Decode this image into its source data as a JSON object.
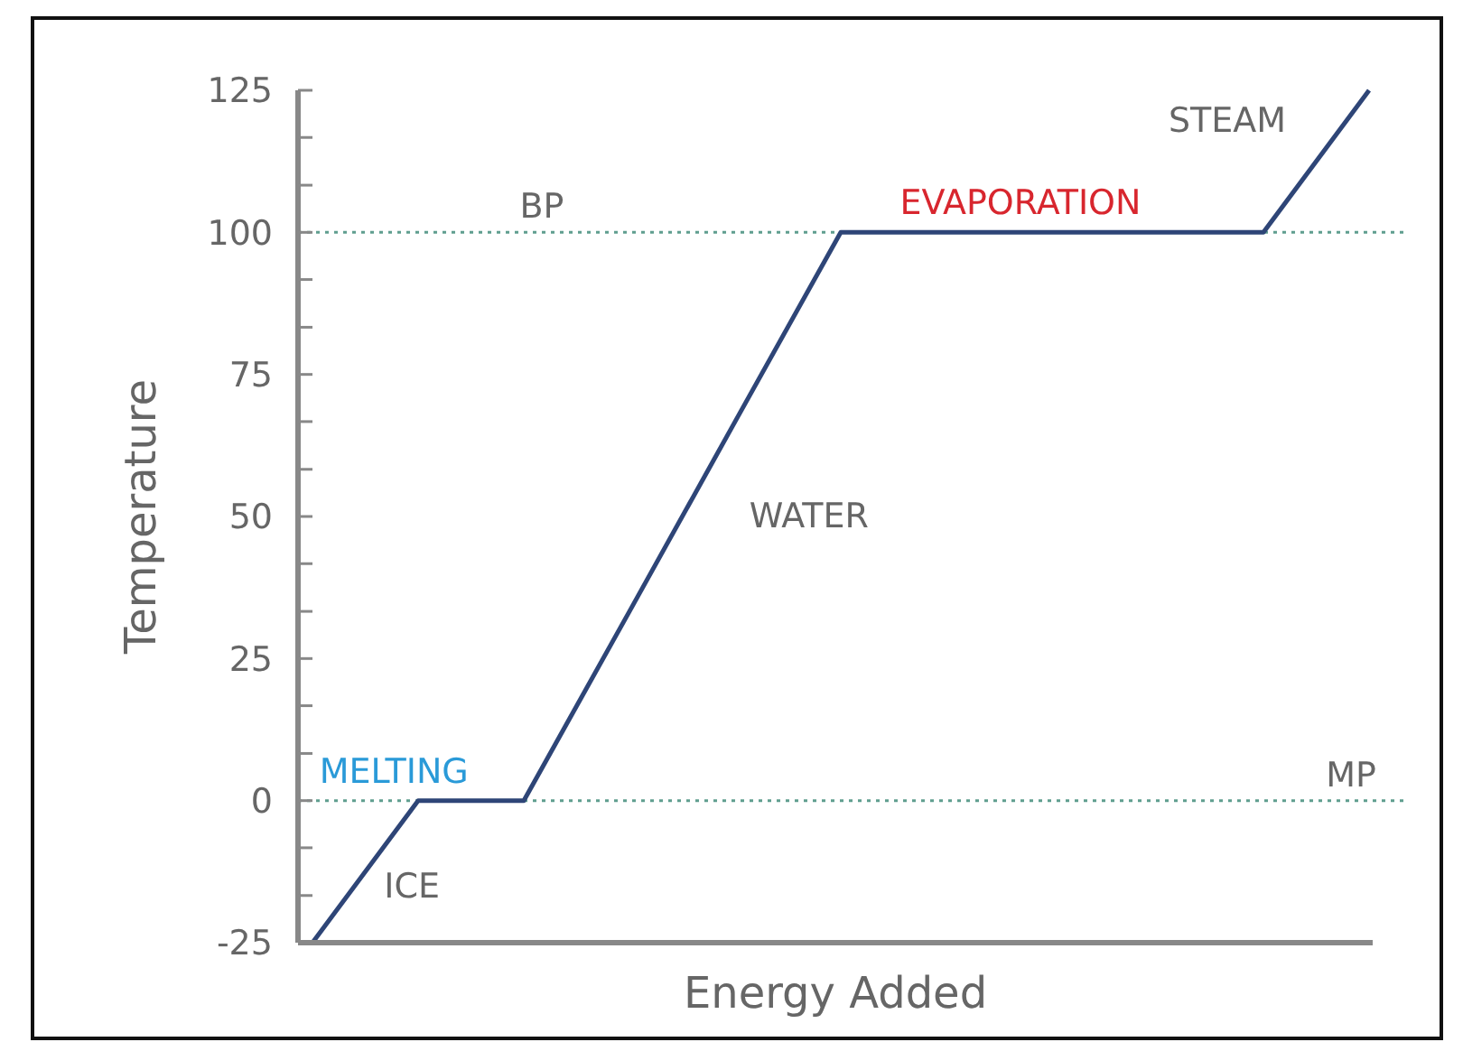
{
  "chart_data": {
    "type": "line",
    "xlabel": "Energy Added",
    "ylabel": "Temperature",
    "categories": [
      null,
      null,
      null,
      null,
      null,
      null,
      null,
      null,
      null,
      null,
      null
    ],
    "series": [
      {
        "color": "#2e4577",
        "values": [
          -25,
          0,
          0,
          33.3,
          66.7,
          100,
          100,
          100,
          100,
          100,
          125
        ]
      }
    ],
    "ylim": [
      -25,
      125
    ],
    "yticks": [
      -25,
      {
        "value": -16.7,
        "label": null
      },
      {
        "value": -8.3,
        "label": null
      },
      0,
      {
        "value": 8.3,
        "label": null
      },
      {
        "value": 16.7,
        "label": null
      },
      25,
      {
        "value": 33.3,
        "label": null
      },
      {
        "value": 41.7,
        "label": null
      },
      50,
      {
        "value": 58.3,
        "label": null
      },
      {
        "value": 66.7,
        "label": null
      },
      75,
      {
        "value": 83.3,
        "label": null
      },
      {
        "value": 91.7,
        "label": null
      },
      100,
      {
        "value": 108.3,
        "label": null
      },
      {
        "value": 116.7,
        "label": null
      },
      125
    ],
    "tick_labels": "y",
    "marker": "none",
    "line_style": "solid",
    "ref_lines": [
      {
        "axis": "y",
        "value": 100,
        "label": "BP",
        "color": "#5f9e8f",
        "line_style": "dotted"
      },
      {
        "axis": "y",
        "value": 0,
        "label": "MP",
        "color": "#5f9e8f",
        "line_style": "dotted"
      }
    ],
    "annotations": [
      {
        "text": "MELTING",
        "y": 0
      },
      "ICE",
      "WATER",
      {
        "text": "EVAPORATION",
        "y": 100
      },
      "STEAM"
    ]
  }
}
